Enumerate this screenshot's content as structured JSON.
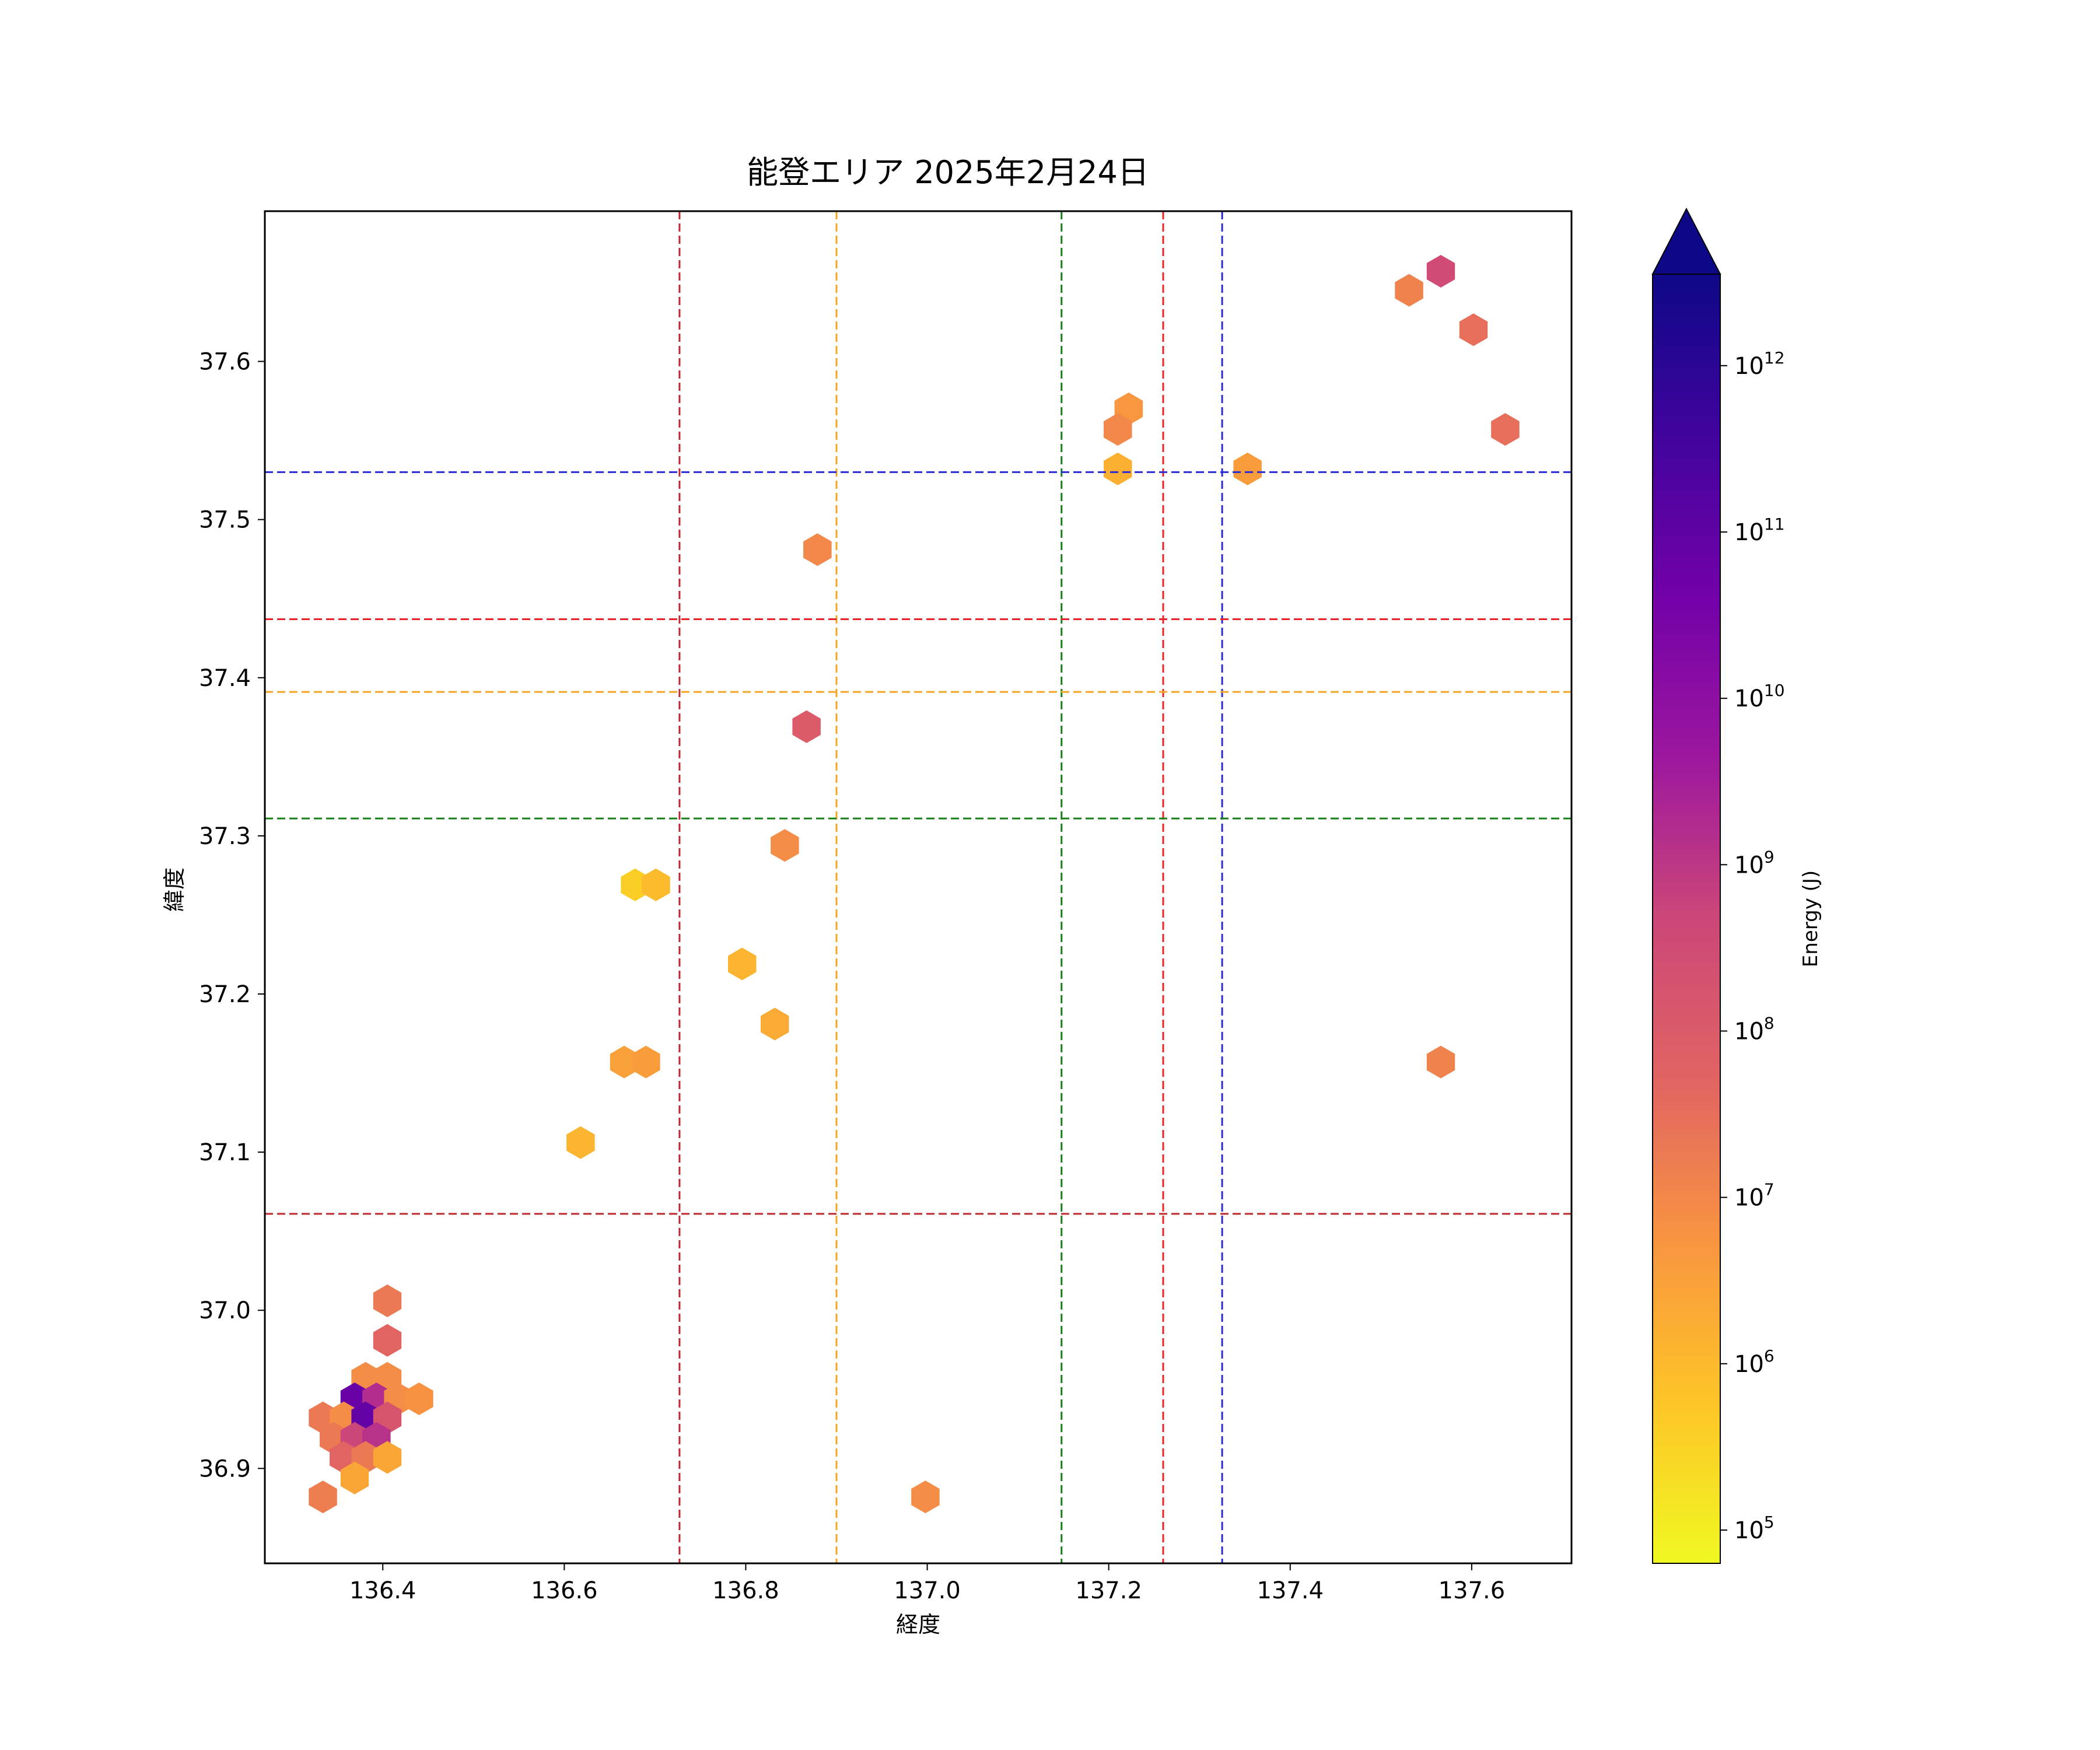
{
  "chart_data": {
    "type": "hexbin",
    "title": "能登エリア 2025年2月24日",
    "xlabel": "経度",
    "ylabel": "緯度",
    "xlim": [
      136.27,
      137.71
    ],
    "ylim": [
      36.84,
      37.695
    ],
    "xticks": [
      136.4,
      136.6,
      136.8,
      137.0,
      137.2,
      137.4,
      137.6
    ],
    "xtick_labels": [
      "136.4",
      "136.6",
      "136.8",
      "137.0",
      "137.2",
      "137.4",
      "137.6"
    ],
    "yticks": [
      36.9,
      37.0,
      37.1,
      37.2,
      37.3,
      37.4,
      37.5,
      37.6
    ],
    "ytick_labels": [
      "36.9",
      "37.0",
      "37.1",
      "37.2",
      "37.3",
      "37.4",
      "37.5",
      "37.6"
    ],
    "grid": false,
    "vertical_lines": [
      {
        "x": 136.727,
        "color": "#c0282e"
      },
      {
        "x": 136.9,
        "color": "#f5a623"
      },
      {
        "x": 137.148,
        "color": "#1a7f1a"
      },
      {
        "x": 137.26,
        "color": "#e8242a"
      },
      {
        "x": 137.325,
        "color": "#2b2bd6"
      }
    ],
    "horizontal_lines": [
      {
        "y": 37.53,
        "color": "#2b2bd6"
      },
      {
        "y": 37.437,
        "color": "#e8242a"
      },
      {
        "y": 37.391,
        "color": "#f5a623"
      },
      {
        "y": 37.311,
        "color": "#1a7f1a"
      },
      {
        "y": 37.061,
        "color": "#c0282e"
      }
    ],
    "colorbar": {
      "label": "Energy (J)",
      "scale": "log",
      "colormap": "plasma_r",
      "range_log10": [
        4.8,
        12.55
      ],
      "extend": "max",
      "ticks_log10": [
        5,
        6,
        7,
        8,
        9,
        10,
        11,
        12
      ]
    },
    "points": [
      {
        "x": 137.566,
        "y": 37.657,
        "log_e": 8.5
      },
      {
        "x": 137.531,
        "y": 37.645,
        "log_e": 7.1
      },
      {
        "x": 137.602,
        "y": 37.62,
        "log_e": 7.5
      },
      {
        "x": 137.637,
        "y": 37.557,
        "log_e": 7.5
      },
      {
        "x": 137.222,
        "y": 37.57,
        "log_e": 6.7
      },
      {
        "x": 137.21,
        "y": 37.557,
        "log_e": 7.0
      },
      {
        "x": 137.21,
        "y": 37.532,
        "log_e": 6.2
      },
      {
        "x": 137.353,
        "y": 37.532,
        "log_e": 6.6
      },
      {
        "x": 136.879,
        "y": 37.481,
        "log_e": 7.0
      },
      {
        "x": 136.867,
        "y": 37.369,
        "log_e": 8.0
      },
      {
        "x": 136.843,
        "y": 37.294,
        "log_e": 6.9
      },
      {
        "x": 136.678,
        "y": 37.269,
        "log_e": 5.6
      },
      {
        "x": 136.701,
        "y": 37.269,
        "log_e": 6.0
      },
      {
        "x": 136.796,
        "y": 37.219,
        "log_e": 6.1
      },
      {
        "x": 136.832,
        "y": 37.181,
        "log_e": 6.3
      },
      {
        "x": 136.666,
        "y": 37.157,
        "log_e": 6.5
      },
      {
        "x": 136.69,
        "y": 37.157,
        "log_e": 6.6
      },
      {
        "x": 137.566,
        "y": 37.157,
        "log_e": 7.1
      },
      {
        "x": 136.618,
        "y": 37.106,
        "log_e": 6.1
      },
      {
        "x": 136.405,
        "y": 37.006,
        "log_e": 7.3
      },
      {
        "x": 136.405,
        "y": 36.981,
        "log_e": 7.7
      },
      {
        "x": 136.381,
        "y": 36.957,
        "log_e": 6.9
      },
      {
        "x": 136.405,
        "y": 36.957,
        "log_e": 6.9
      },
      {
        "x": 136.369,
        "y": 36.944,
        "log_e": 10.8
      },
      {
        "x": 136.393,
        "y": 36.944,
        "log_e": 9.2
      },
      {
        "x": 136.417,
        "y": 36.944,
        "log_e": 6.9
      },
      {
        "x": 136.44,
        "y": 36.944,
        "log_e": 6.8
      },
      {
        "x": 136.334,
        "y": 36.932,
        "log_e": 7.3
      },
      {
        "x": 136.357,
        "y": 36.932,
        "log_e": 6.9
      },
      {
        "x": 136.381,
        "y": 36.932,
        "log_e": 10.9
      },
      {
        "x": 136.405,
        "y": 36.932,
        "log_e": 8.2
      },
      {
        "x": 136.346,
        "y": 36.919,
        "log_e": 7.3
      },
      {
        "x": 136.369,
        "y": 36.919,
        "log_e": 8.7
      },
      {
        "x": 136.393,
        "y": 36.919,
        "log_e": 9.1
      },
      {
        "x": 136.357,
        "y": 36.907,
        "log_e": 7.7
      },
      {
        "x": 136.381,
        "y": 36.907,
        "log_e": 7.3
      },
      {
        "x": 136.405,
        "y": 36.907,
        "log_e": 6.4
      },
      {
        "x": 136.369,
        "y": 36.894,
        "log_e": 6.4
      },
      {
        "x": 136.334,
        "y": 36.882,
        "log_e": 7.2
      },
      {
        "x": 136.998,
        "y": 36.882,
        "log_e": 6.9
      }
    ]
  }
}
